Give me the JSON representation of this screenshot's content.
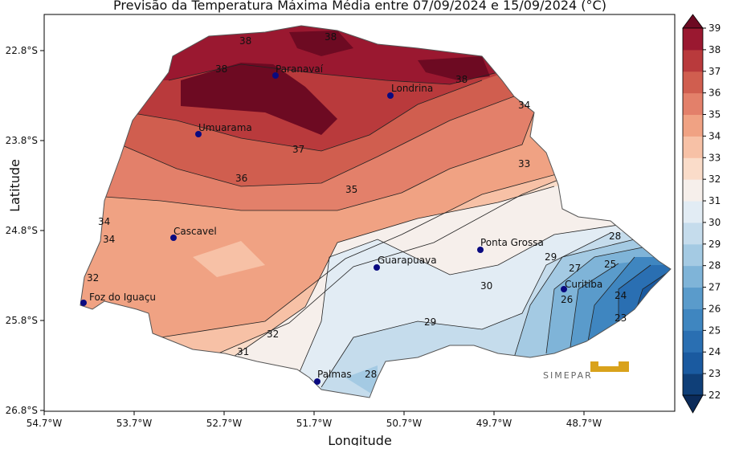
{
  "title": "Previsão da Temperatura Máxima Média entre 07/09/2024 e 15/09/2024 (°C)",
  "xlabel": "Longitude",
  "ylabel": "Latitude",
  "x_ticks": [
    "54.7°W",
    "53.7°W",
    "52.7°W",
    "51.7°W",
    "50.7°W",
    "49.7°W",
    "48.7°W"
  ],
  "y_ticks": [
    "22.8°S",
    "23.8°S",
    "24.8°S",
    "25.8°S",
    "26.8°S"
  ],
  "colorbar": {
    "ticks": [
      "22",
      "23",
      "24",
      "25",
      "26",
      "27",
      "28",
      "29",
      "30",
      "31",
      "32",
      "33",
      "34",
      "35",
      "36",
      "37",
      "38",
      "39"
    ],
    "colors": [
      "#0f3f78",
      "#1a5aa0",
      "#2a6fb2",
      "#3f86c0",
      "#5a9bcb",
      "#7fb4d8",
      "#a4cae3",
      "#c5dcec",
      "#e2ecf4",
      "#f6efeb",
      "#fadcc9",
      "#f7c1a6",
      "#f0a283",
      "#e3806a",
      "#d05e4f",
      "#b93a3c",
      "#9a1830"
    ],
    "extend_top_color": "#6d0a22",
    "extend_bottom_color": "#0b2b5a"
  },
  "cities": [
    {
      "name": "Paranavaí"
    },
    {
      "name": "Londrina"
    },
    {
      "name": "Umuarama"
    },
    {
      "name": "Cascavel"
    },
    {
      "name": "Guarapuava"
    },
    {
      "name": "Ponta Grossa"
    },
    {
      "name": "Foz do Iguaçu"
    },
    {
      "name": "Curitiba"
    },
    {
      "name": "Palmas"
    }
  ],
  "contour_labels": [
    "38",
    "38",
    "38",
    "38",
    "37",
    "36",
    "35",
    "34",
    "34",
    "34",
    "33",
    "32",
    "32",
    "31",
    "30",
    "29",
    "29",
    "28",
    "28",
    "27",
    "26",
    "25",
    "24",
    "23"
  ],
  "logo_text": "SIMEPAR"
}
